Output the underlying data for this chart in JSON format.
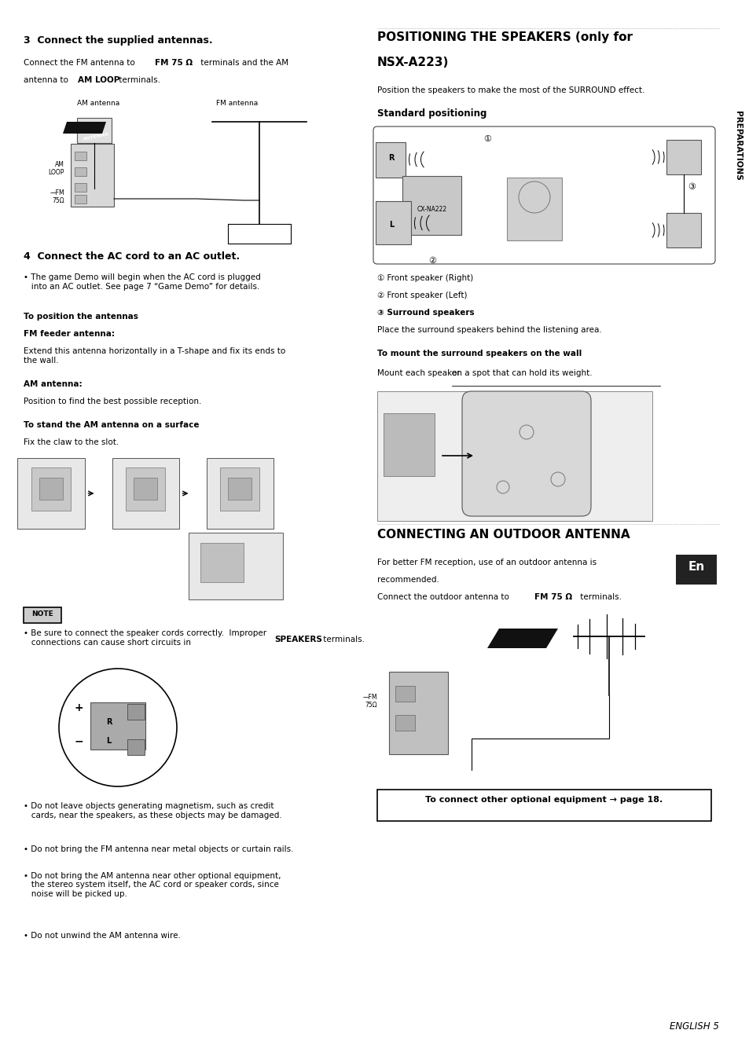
{
  "bg_color": "#ffffff",
  "page_width": 9.54,
  "page_height": 13.25,
  "sections": {
    "sec3_title": "3  Connect the supplied antennas.",
    "sec3_body1": "Connect the FM antenna to ",
    "sec3_body1b": "FM 75 Ω",
    "sec3_body1c": " terminals and the AM",
    "sec3_body2": "antenna to ",
    "sec3_body2b": "AM LOOP",
    "sec3_body2c": " terminals.",
    "sec4_title": "4  Connect the AC cord to an AC outlet.",
    "sec4_body": "• The game Demo will begin when the AC cord is plugged\n   into an AC outlet. See page 7 “Game Demo” for details.",
    "pos_ant_title": "To position the antennas",
    "fm_feeder_title": "FM feeder antenna:",
    "fm_feeder_body": "Extend this antenna horizontally in a T-shape and fix its ends to\nthe wall.",
    "am_ant_title": "AM antenna:",
    "am_ant_body": "Position to find the best possible reception.",
    "stand_am_title": "To stand the AM antenna on a surface",
    "stand_am_body": "Fix the claw to the slot.",
    "note_body": "• Be sure to connect the speaker cords correctly.  Improper\n   connections can cause short circuits in ",
    "note_body_bold": "SPEAKERS",
    "note_body_end": " terminals.",
    "bullets_bottom": [
      "• Do not leave objects generating magnetism, such as credit\n   cards, near the speakers, as these objects may be damaged.",
      "• Do not bring the FM antenna near metal objects or curtain rails.",
      "• Do not bring the AM antenna near other optional equipment,\n   the stereo system itself, the AC cord or speaker cords, since\n   noise will be picked up.",
      "• Do not unwind the AM antenna wire."
    ],
    "pos_speakers_body": "Position the speakers to make the most of the SURROUND effect.",
    "std_pos_title": "Standard positioning",
    "front_r": "① Front speaker (Right)",
    "front_l": "② Front speaker (Left)",
    "surround_bold": "③ Surround speakers",
    "surround_body": "Place the surround speakers behind the listening area.",
    "mount_wall_title": "To mount the surround speakers on the wall",
    "mount_wall_body": "Mount each speaker ",
    "mount_wall_underline": "on a spot that can hold its weight.",
    "connect_outdoor_title": "CONNECTING AN OUTDOOR ANTENNA",
    "connect_outdoor_body1": "For better FM reception, use of an outdoor antenna is",
    "connect_outdoor_body2": "recommended.",
    "connect_outdoor_body3": "Connect the outdoor antenna to ",
    "connect_outdoor_body3b": "FM 75 Ω",
    "connect_outdoor_body3c": " terminals.",
    "connect_other": "To connect other optional equipment → page 18.",
    "page_footer": "ENGLISH 5",
    "preparations_label": "PREPARATIONS"
  }
}
